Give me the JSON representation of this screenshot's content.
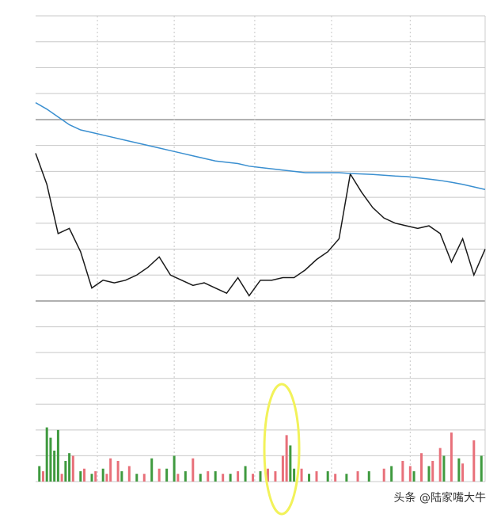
{
  "chart_data": [
    {
      "type": "line",
      "x": [
        0,
        6,
        12,
        18,
        24,
        30,
        36,
        42,
        48,
        54,
        60,
        66,
        72,
        78,
        84,
        90,
        96,
        102,
        108,
        114,
        120,
        126,
        132,
        138,
        144,
        150,
        156,
        162,
        168,
        174,
        180,
        186,
        192,
        198,
        204,
        210,
        216,
        222,
        228,
        234,
        240
      ],
      "xlim": [
        0,
        240
      ],
      "xticks": [
        33,
        74,
        117,
        158,
        200
      ],
      "ylim": [
        0,
        11
      ],
      "yticks": [
        0,
        1,
        2,
        3,
        4,
        5,
        6,
        7,
        8,
        9,
        10,
        11
      ],
      "grid": true,
      "series": [
        {
          "color": "#1a1a1a",
          "values": [
            5.7,
            4.5,
            2.6,
            2.8,
            1.9,
            0.5,
            0.8,
            0.7,
            0.8,
            1.0,
            1.3,
            1.7,
            1.0,
            0.8,
            0.6,
            0.7,
            0.5,
            0.3,
            0.9,
            0.2,
            0.8,
            0.8,
            0.9,
            0.9,
            1.2,
            1.6,
            1.9,
            2.4,
            4.9,
            4.2,
            3.6,
            3.2,
            3.0,
            2.9,
            2.8,
            2.9,
            2.6,
            1.5,
            2.4,
            1.0,
            2.0
          ]
        },
        {
          "color": "#3a8fd0",
          "values": [
            7.65,
            7.4,
            7.1,
            6.8,
            6.6,
            6.5,
            6.4,
            6.3,
            6.2,
            6.1,
            6.0,
            5.9,
            5.8,
            5.7,
            5.6,
            5.5,
            5.4,
            5.35,
            5.3,
            5.2,
            5.15,
            5.1,
            5.05,
            5.0,
            4.95,
            4.95,
            4.95,
            4.95,
            4.92,
            4.9,
            4.88,
            4.85,
            4.82,
            4.8,
            4.75,
            4.7,
            4.65,
            4.58,
            4.5,
            4.4,
            4.3
          ]
        }
      ]
    },
    {
      "type": "bar",
      "xlim": [
        0,
        240
      ],
      "ylim": [
        0,
        7
      ],
      "yticks": [
        0,
        1,
        2,
        3,
        4,
        5,
        6
      ],
      "grid": true,
      "series": [
        {
          "color": "#e8707a",
          "x": [
            4,
            14,
            20,
            26,
            32,
            38,
            40,
            44,
            50,
            58,
            66,
            76,
            84,
            92,
            100,
            108,
            116,
            124,
            128,
            132,
            134,
            142,
            150,
            160,
            172,
            186,
            196,
            200,
            206,
            212,
            216,
            222,
            228,
            234
          ],
          "values": [
            0.4,
            0.3,
            1.0,
            0.5,
            0.4,
            0.3,
            0.9,
            0.8,
            0.6,
            0.3,
            0.5,
            0.3,
            0.9,
            0.4,
            0.3,
            0.4,
            0.3,
            0.5,
            0.4,
            1.0,
            1.8,
            0.5,
            0.4,
            0.3,
            0.4,
            0.5,
            0.8,
            0.6,
            1.1,
            0.8,
            1.3,
            1.9,
            0.7,
            1.6
          ]
        },
        {
          "color": "#3f9a3f",
          "x": [
            2,
            6,
            8,
            10,
            12,
            16,
            18,
            24,
            30,
            36,
            46,
            54,
            62,
            70,
            74,
            80,
            88,
            96,
            104,
            112,
            120,
            136,
            138,
            146,
            156,
            166,
            178,
            190,
            202,
            210,
            218,
            226,
            238
          ],
          "values": [
            0.6,
            2.1,
            1.7,
            1.2,
            2.0,
            0.8,
            1.1,
            0.4,
            0.3,
            0.5,
            0.4,
            0.3,
            0.9,
            0.5,
            1.0,
            0.4,
            0.3,
            0.4,
            0.3,
            0.6,
            0.4,
            1.4,
            0.5,
            0.3,
            0.4,
            0.3,
            0.4,
            0.6,
            0.4,
            0.6,
            1.0,
            0.9,
            1.0
          ]
        }
      ]
    }
  ],
  "watermark": "头条 @陆家嘴大牛"
}
